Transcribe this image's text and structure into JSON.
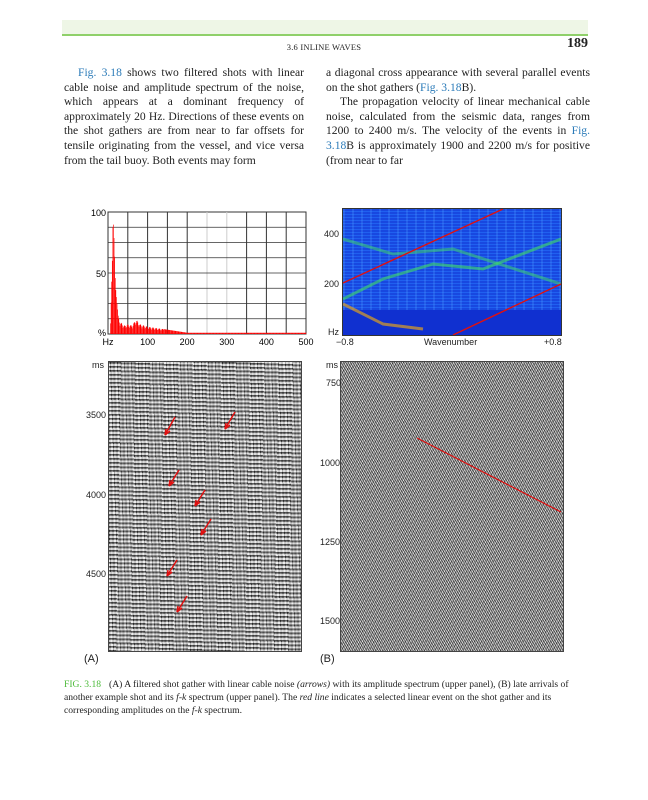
{
  "header": {
    "running_title": "3.6 INLINE WAVES",
    "page_number": "189"
  },
  "body": {
    "col1": {
      "link": "Fig. 3.18",
      "text": " shows two filtered shots with linear cable noise and amplitude spectrum of the noise, which appears at a dominant frequency of approximately 20 Hz. Directions of these events on the shot gathers are from near to far offsets for tensile originating from the vessel, and vice versa from the tail buoy. Both events may form"
    },
    "col2": {
      "p1_text": "a diagonal cross appearance with several parallel events on the shot gathers (",
      "p1_link": "Fig. 3.18",
      "p1_end": "B).",
      "p2_text": "The propagation velocity of linear mechanical cable noise, calculated from the seismic data, ranges from 1200 to 2400 m/s. The velocity of the events in ",
      "p2_link": "Fig. 3.18",
      "p2_end": "B is approximately 1900 and 2200 m/s for positive (from near to far"
    }
  },
  "figure": {
    "panel_a_label": "(A)",
    "panel_b_label": "(B)",
    "seisA_ticks": [
      "ms",
      "3500",
      "4000",
      "4500"
    ],
    "seisB_ticks": [
      "ms",
      "750",
      "1000",
      "1250",
      "1500"
    ],
    "fk": {
      "yticks": [
        "400",
        "200",
        "Hz"
      ],
      "xticks": [
        "−0.8",
        "Wavenumber",
        "+0.8"
      ]
    },
    "red_line_color": "#e01010",
    "arrow_color": "#e01010"
  },
  "chart_data": {
    "type": "bar",
    "xlabel": "Hz",
    "ylabel": "%",
    "xticks": [
      "100",
      "200",
      "300",
      "400",
      "500"
    ],
    "yticks": [
      "100",
      "50"
    ],
    "xlim": [
      0,
      500
    ],
    "ylim": [
      0,
      100
    ],
    "grid": true,
    "x": [
      5,
      10,
      12,
      15,
      18,
      20,
      25,
      30,
      40,
      50,
      60,
      70,
      80,
      90,
      100,
      120,
      140,
      160,
      180,
      200,
      300,
      400,
      500
    ],
    "values": [
      3,
      60,
      97,
      75,
      40,
      32,
      15,
      10,
      7,
      8,
      7,
      12,
      8,
      7,
      6,
      5,
      4,
      3,
      2,
      1,
      1,
      1,
      1
    ],
    "color": "#ff0000"
  },
  "caption": {
    "fig": "FIG. 3.18",
    "t1": "(A) A filtered shot gather with linear cable noise ",
    "i1": "(arrows)",
    "t2": " with its amplitude spectrum (upper panel), (B) late arrivals of another example shot and its ",
    "i2": "f-k",
    "t3": " spectrum (upper panel). The ",
    "i3": "red line",
    "t4": " indicates a selected linear event on the shot gather and its corresponding amplitudes on the ",
    "i4": "f-k",
    "t5": " spectrum."
  }
}
